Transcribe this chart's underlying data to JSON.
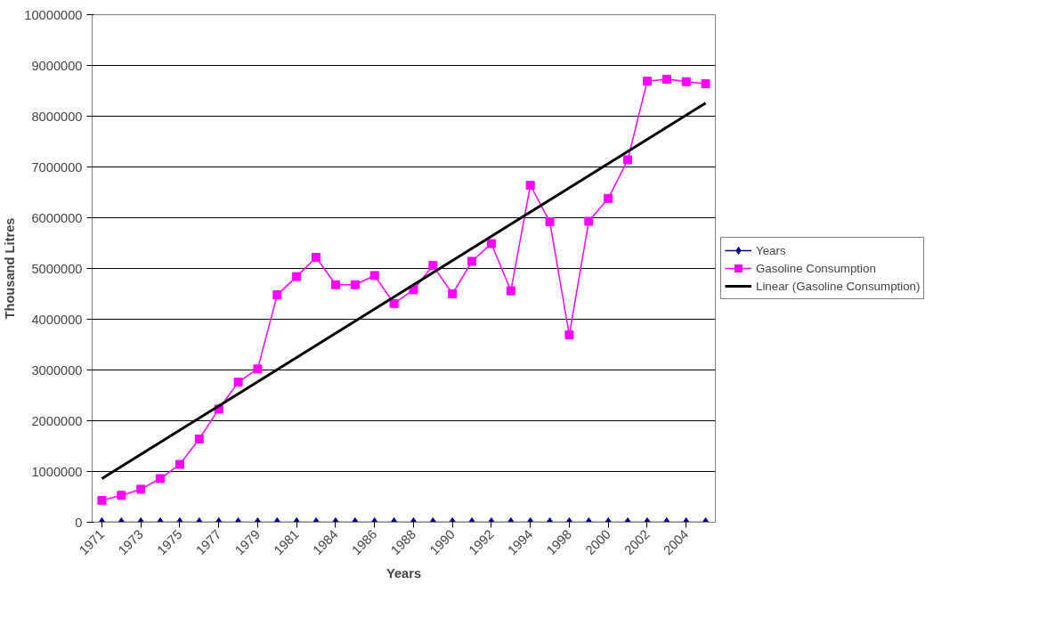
{
  "chart_data": {
    "type": "line",
    "xlabel": "Years",
    "ylabel": "Thousand Litres",
    "categories": [
      "1971",
      null,
      "1973",
      null,
      "1975",
      null,
      "1977",
      null,
      "1979",
      null,
      "1981",
      null,
      "1984",
      null,
      "1986",
      null,
      "1988",
      null,
      "1990",
      null,
      "1992",
      null,
      "1994",
      null,
      "1998",
      null,
      "2000",
      null,
      "2002",
      null,
      "2004",
      null
    ],
    "ylim": [
      0,
      10000000
    ],
    "yticks": [
      0,
      1000000,
      2000000,
      3000000,
      4000000,
      5000000,
      6000000,
      7000000,
      8000000,
      9000000,
      10000000
    ],
    "grid": "y",
    "legend": "right",
    "series": [
      {
        "name": "Years",
        "color": "#000080",
        "marker": "diamond",
        "values": [
          0,
          0,
          0,
          0,
          0,
          0,
          0,
          0,
          0,
          0,
          0,
          0,
          0,
          0,
          0,
          0,
          0,
          0,
          0,
          0,
          0,
          0,
          0,
          0,
          0,
          0,
          0,
          0,
          0,
          0,
          0,
          0
        ]
      },
      {
        "name": "Gasoline Consumption",
        "color": "#ff00ff",
        "marker": "square",
        "values": [
          430000,
          530000,
          650000,
          860000,
          1140000,
          1640000,
          2230000,
          2760000,
          3020000,
          4480000,
          4840000,
          5220000,
          4680000,
          4680000,
          4860000,
          4310000,
          4580000,
          5060000,
          4500000,
          5140000,
          5490000,
          4560000,
          6640000,
          5920000,
          3690000,
          5930000,
          6380000,
          7140000,
          8690000,
          8730000,
          8680000,
          8640000
        ]
      },
      {
        "name": "Linear (Gasoline Consumption)",
        "color": "#000000",
        "marker": "none",
        "values": [
          860000,
          null,
          null,
          null,
          null,
          null,
          null,
          null,
          null,
          null,
          null,
          null,
          null,
          null,
          null,
          null,
          null,
          null,
          null,
          null,
          null,
          null,
          null,
          null,
          null,
          null,
          null,
          null,
          null,
          null,
          null,
          8260000
        ]
      }
    ]
  }
}
